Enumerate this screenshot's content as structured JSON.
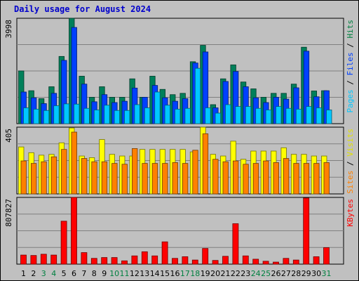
{
  "chart_data": {
    "type": "bar",
    "title": "Daily usage for August 2024",
    "days": [
      "1",
      "2",
      "3",
      "4",
      "5",
      "6",
      "7",
      "8",
      "9",
      "10",
      "11",
      "12",
      "13",
      "14",
      "15",
      "16",
      "17",
      "18",
      "19",
      "20",
      "21",
      "22",
      "23",
      "24",
      "25",
      "26",
      "27",
      "28",
      "29",
      "30",
      "31"
    ],
    "weekend_days": [
      "3",
      "4",
      "10",
      "11",
      "17",
      "18",
      "24",
      "25",
      "31"
    ],
    "panels": [
      {
        "id": "hits",
        "max_label": "3998",
        "ymax": 3998,
        "right_labels": [
          {
            "text": "Pages",
            "color": "#00c8ff"
          },
          {
            "text": " / ",
            "color": "#000000"
          },
          {
            "text": "Files",
            "color": "#0040ff"
          },
          {
            "text": " / ",
            "color": "#000000"
          },
          {
            "text": "Hits",
            "color": "#008040"
          }
        ],
        "series": [
          {
            "name": "Hits",
            "color": "#00805a",
            "values": [
              2000,
              1250,
              950,
              1400,
              2550,
              4000,
              1800,
              1000,
              1400,
              1000,
              1000,
              1700,
              1000,
              1800,
              1300,
              1100,
              1150,
              2350,
              2970,
              720,
              1700,
              2230,
              1580,
              1320,
              1000,
              1150,
              1150,
              1500,
              2900,
              1240,
              1250
            ]
          },
          {
            "name": "Files",
            "color": "#0040ff",
            "values": [
              1200,
              980,
              760,
              1150,
              2400,
              3650,
              1500,
              830,
              1100,
              800,
              850,
              1350,
              1000,
              1450,
              980,
              850,
              950,
              2300,
              2720,
              600,
              1600,
              1980,
              1400,
              980,
              800,
              1000,
              930,
              1360,
              2750,
              1020,
              1250
            ]
          },
          {
            "name": "Pages",
            "color": "#00c8ff",
            "values": [
              600,
              550,
              500,
              680,
              750,
              740,
              580,
              520,
              700,
              500,
              500,
              720,
              600,
              1200,
              700,
              550,
              580,
              2100,
              600,
              400,
              720,
              650,
              650,
              580,
              520,
              650,
              580,
              550,
              650,
              600,
              520
            ]
          }
        ]
      },
      {
        "id": "visits",
        "max_label": "405",
        "ymax": 405,
        "right_labels": [
          {
            "text": "Sites",
            "color": "#ff8000"
          },
          {
            "text": " / ",
            "color": "#000000"
          },
          {
            "text": "Visits",
            "color": "#e0e000"
          }
        ],
        "series": [
          {
            "name": "Visits",
            "color": "#ffff00",
            "values": [
              285,
              250,
              235,
              240,
              310,
              400,
              230,
              220,
              330,
              240,
              230,
              230,
              270,
              270,
              270,
              270,
              270,
              255,
              405,
              240,
              230,
              320,
              210,
              260,
              260,
              260,
              280,
              240,
              240,
              230,
              230
            ]
          },
          {
            "name": "Sites",
            "color": "#ff8000",
            "values": [
              200,
              185,
              195,
              225,
              270,
              375,
              215,
              195,
              195,
              185,
              180,
              275,
              185,
              185,
              185,
              190,
              185,
              265,
              365,
              210,
              195,
              200,
              180,
              185,
              200,
              190,
              215,
              185,
              185,
              185,
              190
            ]
          }
        ]
      },
      {
        "id": "kbytes",
        "max_label": "807827",
        "ymax": 807827,
        "right_labels": [
          {
            "text": "KBytes",
            "color": "#ff0000"
          }
        ],
        "series": [
          {
            "name": "KBytes",
            "color": "#ff0000",
            "values": [
              110000,
              105000,
              120000,
              110000,
              520000,
              815000,
              140000,
              70000,
              80000,
              80000,
              40000,
              100000,
              150000,
              100000,
              270000,
              70000,
              90000,
              50000,
              190000,
              45000,
              95000,
              490000,
              100000,
              60000,
              35000,
              25000,
              70000,
              50000,
              800000,
              90000,
              200000
            ]
          }
        ]
      }
    ]
  }
}
